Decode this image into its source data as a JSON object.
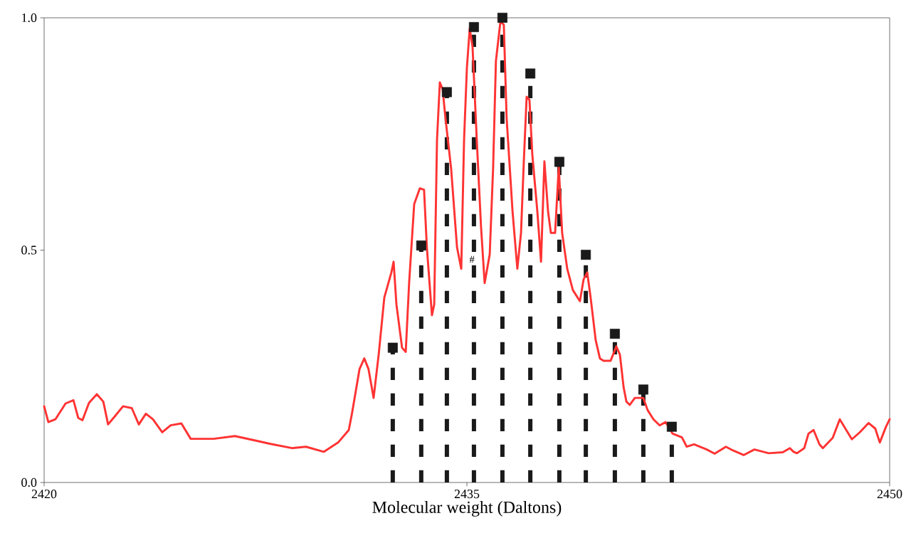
{
  "chart_data": {
    "type": "line",
    "xlabel": "Molecular weight (Daltons)",
    "xlim": [
      2420,
      2450
    ],
    "ylim": [
      0,
      1
    ],
    "xticks": [
      2420,
      2435,
      2450
    ],
    "yticks": [
      {
        "value": 0,
        "label": "0.0"
      },
      {
        "value": 0.5,
        "label": "0.5"
      },
      {
        "value": 1,
        "label": "1.0"
      }
    ],
    "annotations": [
      "#"
    ],
    "series": [
      {
        "color": "#ff3333",
        "marker": "none",
        "line_style": "solid",
        "x": [
          2420.0,
          2420.15,
          2420.4,
          2420.76,
          2421.04,
          2421.21,
          2421.36,
          2421.59,
          2421.87,
          2422.1,
          2422.27,
          2422.53,
          2422.8,
          2423.11,
          2423.36,
          2423.61,
          2423.86,
          2424.19,
          2424.49,
          2424.87,
          2425.2,
          2426.01,
          2426.77,
          2427.52,
          2428.03,
          2428.79,
          2429.29,
          2429.92,
          2430.43,
          2430.81,
          2430.93,
          2431.19,
          2431.36,
          2431.51,
          2431.69,
          2431.87,
          2432.07,
          2432.32,
          2432.4,
          2432.5,
          2432.7,
          2432.83,
          2432.95,
          2433.13,
          2433.33,
          2433.48,
          2433.58,
          2433.76,
          2433.84,
          2433.94,
          2434.04,
          2434.14,
          2434.24,
          2434.44,
          2434.65,
          2434.8,
          2434.9,
          2435.0,
          2435.1,
          2435.2,
          2435.35,
          2435.5,
          2435.63,
          2435.81,
          2435.93,
          2436.03,
          2436.19,
          2436.31,
          2436.41,
          2436.62,
          2436.79,
          2436.92,
          2437.02,
          2437.12,
          2437.22,
          2437.32,
          2437.5,
          2437.63,
          2437.75,
          2437.88,
          2437.98,
          2438.13,
          2438.26,
          2438.38,
          2438.56,
          2438.76,
          2439.01,
          2439.14,
          2439.27,
          2439.39,
          2439.57,
          2439.72,
          2439.85,
          2440.1,
          2440.23,
          2440.3,
          2440.43,
          2440.56,
          2440.66,
          2440.78,
          2440.96,
          2441.26,
          2441.41,
          2441.62,
          2441.84,
          2442.05,
          2442.3,
          2442.63,
          2442.8,
          2443.06,
          2443.51,
          2443.79,
          2444.19,
          2444.44,
          2444.82,
          2445.2,
          2445.71,
          2446.21,
          2446.46,
          2446.59,
          2446.71,
          2446.97,
          2447.12,
          2447.3,
          2447.51,
          2447.63,
          2447.98,
          2448.23,
          2448.36,
          2448.66,
          2448.94,
          2449.25,
          2449.49,
          2449.65,
          2449.87,
          2450.0
        ],
        "values": [
          0.164,
          0.13,
          0.136,
          0.17,
          0.177,
          0.139,
          0.134,
          0.171,
          0.19,
          0.174,
          0.125,
          0.144,
          0.164,
          0.16,
          0.125,
          0.148,
          0.136,
          0.108,
          0.123,
          0.127,
          0.094,
          0.094,
          0.1,
          0.09,
          0.083,
          0.074,
          0.077,
          0.066,
          0.086,
          0.113,
          0.151,
          0.244,
          0.267,
          0.244,
          0.182,
          0.275,
          0.398,
          0.452,
          0.475,
          0.383,
          0.29,
          0.281,
          0.429,
          0.599,
          0.633,
          0.63,
          0.506,
          0.36,
          0.383,
          0.738,
          0.861,
          0.846,
          0.784,
          0.676,
          0.506,
          0.46,
          0.738,
          0.892,
          0.977,
          0.938,
          0.738,
          0.552,
          0.429,
          0.491,
          0.676,
          0.907,
          0.992,
          0.985,
          0.784,
          0.583,
          0.46,
          0.537,
          0.691,
          0.83,
          0.823,
          0.707,
          0.583,
          0.475,
          0.691,
          0.583,
          0.537,
          0.537,
          0.679,
          0.537,
          0.46,
          0.414,
          0.39,
          0.437,
          0.452,
          0.398,
          0.306,
          0.267,
          0.262,
          0.262,
          0.282,
          0.293,
          0.275,
          0.205,
          0.174,
          0.167,
          0.182,
          0.182,
          0.156,
          0.136,
          0.123,
          0.13,
          0.105,
          0.097,
          0.077,
          0.082,
          0.071,
          0.062,
          0.077,
          0.069,
          0.059,
          0.071,
          0.063,
          0.065,
          0.074,
          0.066,
          0.063,
          0.074,
          0.105,
          0.113,
          0.082,
          0.074,
          0.096,
          0.136,
          0.123,
          0.093,
          0.108,
          0.128,
          0.116,
          0.086,
          0.12,
          0.136
        ]
      },
      {
        "type": "lollipop",
        "color": "#1a1a1a",
        "marker": "square",
        "line_style": "dotted",
        "x": [
          2432.37,
          2433.38,
          2434.29,
          2435.25,
          2436.26,
          2437.25,
          2438.28,
          2439.22,
          2440.25,
          2441.26,
          2442.27
        ],
        "values": [
          0.29,
          0.51,
          0.84,
          0.98,
          1.0,
          0.88,
          0.69,
          0.49,
          0.32,
          0.2,
          0.12
        ]
      }
    ]
  }
}
